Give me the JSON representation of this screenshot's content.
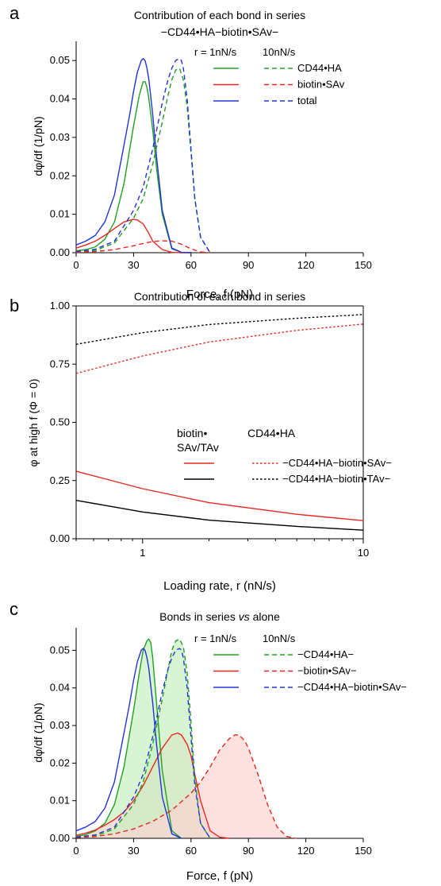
{
  "chart_data": [
    {
      "panel": "a",
      "type": "line",
      "title": "Contribution of each bond in series",
      "subtitle": "−CD44•HA−biotin•SAv−",
      "xlabel": "Force, f (pN)",
      "ylabel": "dφ/df (1/pN)",
      "xlim": [
        0,
        150
      ],
      "ylim": [
        0,
        0.055
      ],
      "xticks": [
        "0",
        "30",
        "60",
        "90",
        "120",
        "150"
      ],
      "yticks": [
        "0.00",
        "0.01",
        "0.02",
        "0.03",
        "0.04",
        "0.05"
      ],
      "legend": {
        "header_left": "r = 1nN/s",
        "header_right": "10nN/s",
        "entries": [
          "CD44•HA",
          "biotin•SAv",
          "total"
        ]
      },
      "series": [
        {
          "name": "CD44•HA",
          "rate": "1nN/s",
          "color": "#22a022",
          "dash": "solid",
          "x": [
            0,
            5,
            10,
            15,
            20,
            25,
            30,
            33,
            35,
            36,
            37,
            38,
            40,
            42,
            45,
            50,
            55,
            60
          ],
          "y": [
            0.0005,
            0.0008,
            0.0015,
            0.0035,
            0.008,
            0.018,
            0.033,
            0.041,
            0.0445,
            0.0445,
            0.043,
            0.04,
            0.032,
            0.022,
            0.01,
            0.001,
            0.0001,
            0
          ]
        },
        {
          "name": "biotin•SAv",
          "rate": "1nN/s",
          "color": "#e8281e",
          "dash": "solid",
          "x": [
            0,
            5,
            10,
            15,
            20,
            25,
            30,
            32,
            35,
            38,
            40,
            45,
            50,
            55,
            60
          ],
          "y": [
            0.0012,
            0.002,
            0.003,
            0.0045,
            0.0063,
            0.008,
            0.0087,
            0.0085,
            0.0075,
            0.005,
            0.003,
            0.0008,
            0.0001,
            0,
            0
          ]
        },
        {
          "name": "total",
          "rate": "1nN/s",
          "color": "#2233dd",
          "dash": "solid",
          "x": [
            0,
            5,
            10,
            15,
            20,
            25,
            28,
            30,
            32,
            34,
            35,
            36,
            37,
            38,
            40,
            42,
            45,
            50,
            55,
            60
          ],
          "y": [
            0.002,
            0.003,
            0.0045,
            0.008,
            0.015,
            0.028,
            0.036,
            0.042,
            0.047,
            0.05,
            0.0505,
            0.05,
            0.048,
            0.045,
            0.036,
            0.025,
            0.011,
            0.0012,
            0.0001,
            0
          ]
        },
        {
          "name": "CD44•HA",
          "rate": "10nN/s",
          "color": "#22a022",
          "dash": "dashed",
          "x": [
            0,
            10,
            20,
            30,
            35,
            40,
            45,
            48,
            50,
            52,
            54,
            56,
            58,
            60,
            62,
            65,
            70
          ],
          "y": [
            0.0002,
            0.0006,
            0.0025,
            0.009,
            0.014,
            0.023,
            0.034,
            0.041,
            0.045,
            0.0475,
            0.048,
            0.045,
            0.038,
            0.026,
            0.014,
            0.004,
            0
          ]
        },
        {
          "name": "biotin•SAv",
          "rate": "10nN/s",
          "color": "#e8281e",
          "dash": "dashed",
          "x": [
            0,
            10,
            20,
            30,
            35,
            40,
            45,
            50,
            55,
            60,
            65,
            70
          ],
          "y": [
            0.0001,
            0.0003,
            0.0008,
            0.0018,
            0.0024,
            0.0029,
            0.0031,
            0.003,
            0.0022,
            0.001,
            0.0002,
            0
          ]
        },
        {
          "name": "total",
          "rate": "10nN/s",
          "color": "#2233dd",
          "dash": "dashed",
          "x": [
            0,
            10,
            20,
            30,
            35,
            40,
            45,
            48,
            50,
            52,
            54,
            55,
            56,
            58,
            60,
            62,
            65,
            70
          ],
          "y": [
            0.0003,
            0.0009,
            0.003,
            0.011,
            0.017,
            0.027,
            0.039,
            0.045,
            0.048,
            0.05,
            0.0505,
            0.05,
            0.048,
            0.04,
            0.027,
            0.014,
            0.004,
            0
          ]
        }
      ]
    },
    {
      "panel": "b",
      "type": "line",
      "title": "Contribution of each bond in series",
      "xlabel": "Loading rate, r (nN/s)",
      "ylabel": "φ at high f (Φ = 0)",
      "xscale": "log",
      "xlim": [
        0.5,
        10
      ],
      "ylim": [
        0,
        1.0
      ],
      "xticks": [
        "1",
        "10"
      ],
      "yticks": [
        "0.00",
        "0.25",
        "0.50",
        "0.75",
        "1.00"
      ],
      "legend": {
        "header_left_line1": "biotin•",
        "header_left_line2": "SAv/TAv",
        "header_right": "CD44•HA",
        "entries": [
          "−CD44•HA−biotin•SAv−",
          "−CD44•HA−biotin•TAv−"
        ]
      },
      "series": [
        {
          "name": "biotin•SAv",
          "color": "#e8281e",
          "dash": "solid",
          "x": [
            0.5,
            1,
            2,
            5,
            10
          ],
          "y": [
            0.29,
            0.215,
            0.155,
            0.105,
            0.078
          ]
        },
        {
          "name": "biotin•TAv",
          "color": "#000000",
          "dash": "solid",
          "x": [
            0.5,
            1,
            2,
            5,
            10
          ],
          "y": [
            0.165,
            0.115,
            0.08,
            0.053,
            0.037
          ]
        },
        {
          "name": "−CD44•HA−biotin•SAv−",
          "color": "#e8281e",
          "dash": "dotted",
          "x": [
            0.5,
            1,
            2,
            5,
            10
          ],
          "y": [
            0.71,
            0.785,
            0.845,
            0.895,
            0.922
          ]
        },
        {
          "name": "−CD44•HA−biotin•TAv−",
          "color": "#000000",
          "dash": "dotted",
          "x": [
            0.5,
            1,
            2,
            5,
            10
          ],
          "y": [
            0.835,
            0.885,
            0.92,
            0.947,
            0.963
          ]
        }
      ]
    },
    {
      "panel": "c",
      "type": "area",
      "title": "Bonds in series vs alone",
      "title_plain": "Bonds in series ",
      "title_italic": "vs",
      "title_rest": " alone",
      "xlabel": "Force, f (pN)",
      "ylabel": "dφ/df (1/pN)",
      "xlim": [
        0,
        150
      ],
      "ylim": [
        0,
        0.056
      ],
      "xticks": [
        "0",
        "30",
        "60",
        "90",
        "120",
        "150"
      ],
      "yticks": [
        "0.00",
        "0.01",
        "0.02",
        "0.03",
        "0.04",
        "0.05"
      ],
      "legend": {
        "header_left": "r = 1nN/s",
        "header_right": "10nN/s",
        "entries": [
          "−CD44•HA−",
          "−biotin•SAv−",
          "−CD44•HA−biotin•SAv−"
        ]
      },
      "series": [
        {
          "name": "−CD44•HA−",
          "rate": "1nN/s",
          "color": "#22a022",
          "dash": "solid",
          "fill": "#c8f0c0",
          "x": [
            0,
            5,
            10,
            15,
            20,
            25,
            30,
            33,
            35,
            37,
            38,
            39,
            40,
            42,
            45,
            50,
            55
          ],
          "y": [
            0.0005,
            0.001,
            0.002,
            0.004,
            0.009,
            0.019,
            0.034,
            0.044,
            0.05,
            0.0525,
            0.053,
            0.052,
            0.048,
            0.036,
            0.018,
            0.002,
            0
          ]
        },
        {
          "name": "−biotin•SAv−",
          "rate": "1nN/s",
          "color": "#e8281e",
          "dash": "solid",
          "fill": "#fcd4d4",
          "x": [
            0,
            5,
            10,
            15,
            20,
            25,
            30,
            35,
            40,
            45,
            50,
            53,
            55,
            58,
            60,
            62,
            65,
            70,
            75,
            80
          ],
          "y": [
            0.0008,
            0.0014,
            0.0022,
            0.0035,
            0.005,
            0.007,
            0.01,
            0.014,
            0.019,
            0.024,
            0.0275,
            0.028,
            0.0275,
            0.025,
            0.022,
            0.017,
            0.01,
            0.002,
            0.0003,
            0
          ]
        },
        {
          "name": "−CD44•HA−biotin•SAv−",
          "rate": "1nN/s",
          "color": "#2233dd",
          "dash": "solid",
          "x": [
            0,
            5,
            10,
            15,
            20,
            25,
            28,
            30,
            32,
            34,
            35,
            36,
            37,
            38,
            40,
            42,
            45,
            50,
            55
          ],
          "y": [
            0.002,
            0.003,
            0.0045,
            0.008,
            0.015,
            0.028,
            0.036,
            0.042,
            0.047,
            0.05,
            0.0505,
            0.05,
            0.048,
            0.045,
            0.036,
            0.025,
            0.011,
            0.0012,
            0
          ]
        },
        {
          "name": "−CD44•HA−",
          "rate": "10nN/s",
          "color": "#22a022",
          "dash": "dashed",
          "fill": "#c8f0c0",
          "x": [
            0,
            10,
            20,
            30,
            35,
            40,
            45,
            48,
            50,
            52,
            54,
            56,
            58,
            60,
            62,
            65,
            70
          ],
          "y": [
            0.0002,
            0.0006,
            0.0025,
            0.009,
            0.015,
            0.025,
            0.037,
            0.045,
            0.05,
            0.0525,
            0.053,
            0.051,
            0.044,
            0.031,
            0.016,
            0.004,
            0
          ]
        },
        {
          "name": "−biotin•SAv−",
          "rate": "10nN/s",
          "color": "#e8281e",
          "dash": "dashed",
          "fill": "#fcd4d4",
          "x": [
            0,
            10,
            20,
            30,
            40,
            50,
            60,
            65,
            70,
            75,
            80,
            83,
            85,
            88,
            90,
            95,
            100,
            105,
            110,
            115
          ],
          "y": [
            0.0002,
            0.0005,
            0.0012,
            0.0025,
            0.0045,
            0.0075,
            0.012,
            0.015,
            0.019,
            0.0235,
            0.0265,
            0.0275,
            0.0275,
            0.026,
            0.024,
            0.017,
            0.009,
            0.003,
            0.0005,
            0
          ]
        },
        {
          "name": "−CD44•HA−biotin•SAv−",
          "rate": "10nN/s",
          "color": "#2233dd",
          "dash": "dashed",
          "x": [
            0,
            10,
            20,
            30,
            35,
            40,
            45,
            48,
            50,
            52,
            54,
            55,
            56,
            58,
            60,
            62,
            65,
            70
          ],
          "y": [
            0.0003,
            0.0009,
            0.003,
            0.011,
            0.017,
            0.027,
            0.039,
            0.045,
            0.048,
            0.05,
            0.0505,
            0.05,
            0.048,
            0.04,
            0.027,
            0.014,
            0.004,
            0
          ]
        }
      ]
    }
  ]
}
